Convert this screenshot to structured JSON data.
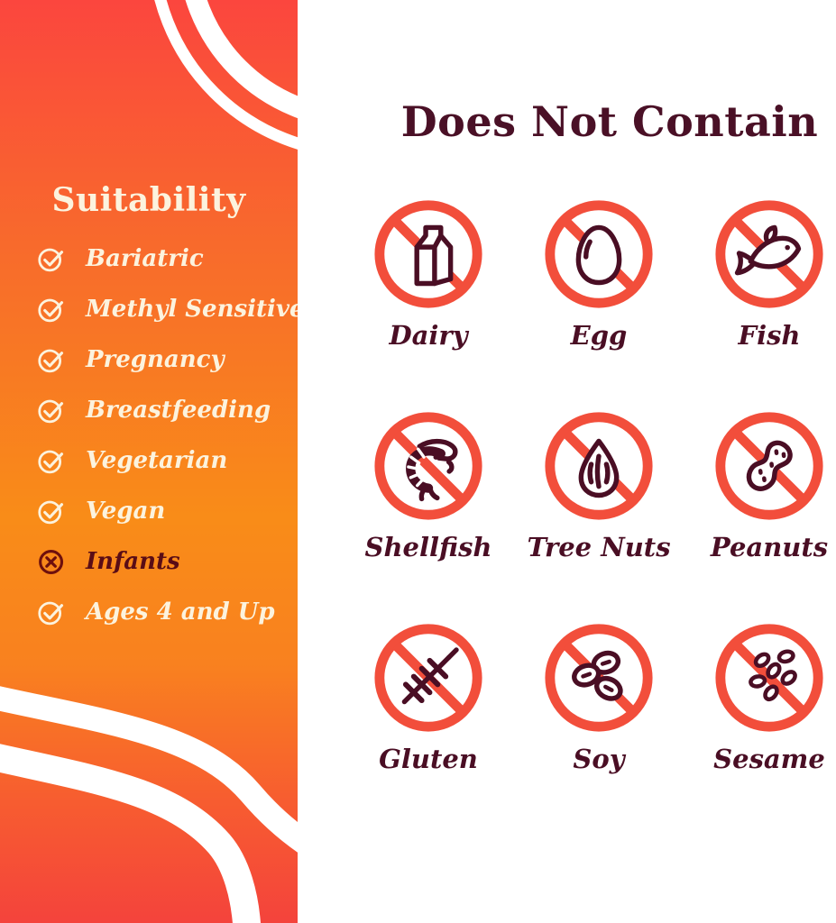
{
  "sidebar": {
    "title": "Suitability",
    "items": [
      {
        "label": "Bariatric",
        "status": "check"
      },
      {
        "label": "Methyl Sensitive",
        "status": "check"
      },
      {
        "label": "Pregnancy",
        "status": "check"
      },
      {
        "label": "Breastfeeding",
        "status": "check"
      },
      {
        "label": "Vegetarian",
        "status": "check"
      },
      {
        "label": "Vegan",
        "status": "check"
      },
      {
        "label": "Infants",
        "status": "cross"
      },
      {
        "label": "Ages 4 and Up",
        "status": "check"
      }
    ]
  },
  "main": {
    "title": "Does Not Contain",
    "allergens": [
      {
        "label": "Dairy",
        "icon": "milk-carton-icon"
      },
      {
        "label": "Egg",
        "icon": "egg-icon"
      },
      {
        "label": "Fish",
        "icon": "fish-icon"
      },
      {
        "label": "Shellfish",
        "icon": "shrimp-icon"
      },
      {
        "label": "Tree Nuts",
        "icon": "almond-icon"
      },
      {
        "label": "Peanuts",
        "icon": "peanut-icon"
      },
      {
        "label": "Gluten",
        "icon": "wheat-icon"
      },
      {
        "label": "Soy",
        "icon": "soybeans-icon"
      },
      {
        "label": "Sesame",
        "icon": "sesame-seeds-icon"
      }
    ]
  },
  "colors": {
    "prohibition_red": "#F24E3B",
    "icon_maroon": "#4A0E24",
    "sidebar_cream": "#FCF3DE",
    "infants_icon_color": "#6E100D",
    "infants_text_color": "#5A0D16",
    "sidebar_gradient_top": "#FB463E",
    "sidebar_gradient_mid": "#F98C18",
    "sidebar_gradient_bottom": "#F4433C"
  }
}
